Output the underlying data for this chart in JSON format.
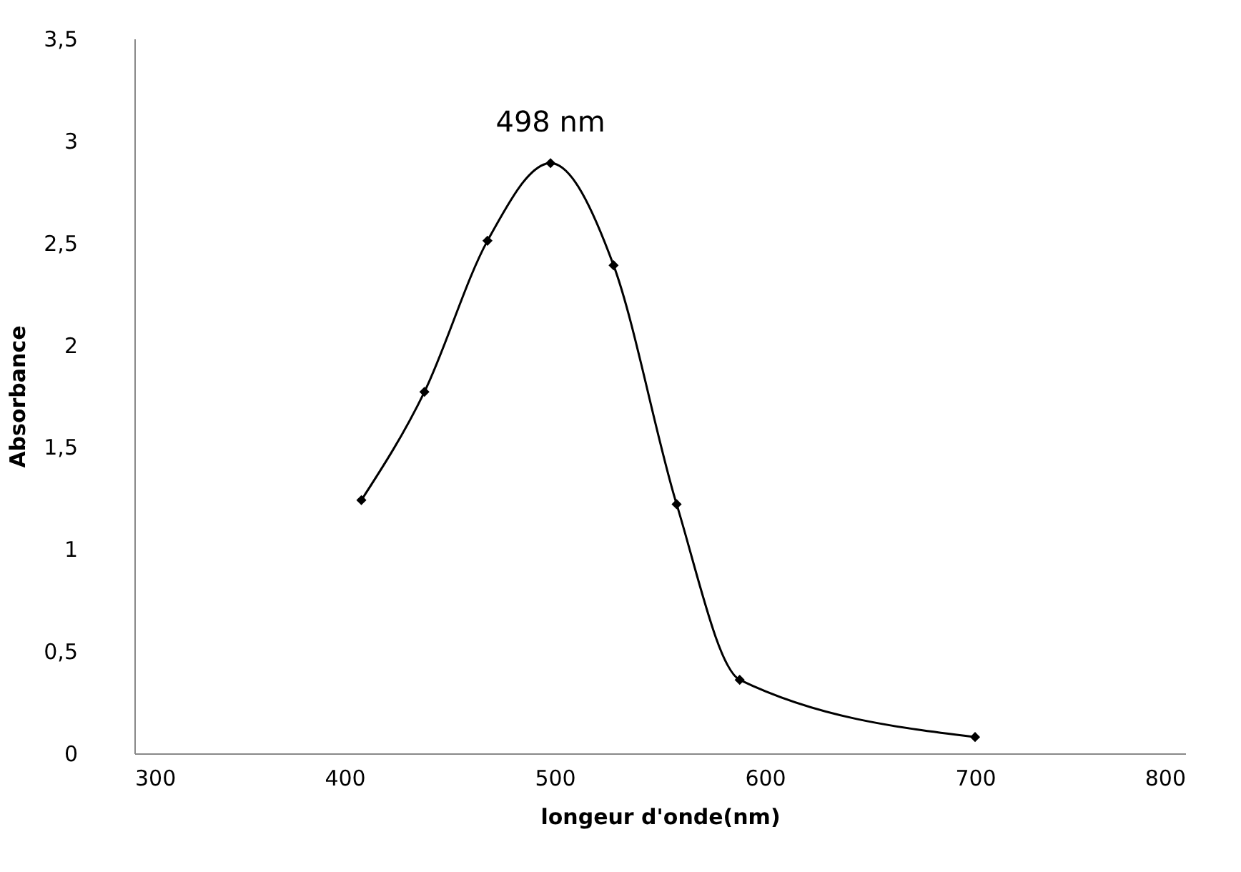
{
  "chart_data": {
    "type": "line",
    "xlabel": "longeur d'onde(nm)",
    "ylabel": "Absorbance",
    "x": [
      408,
      438,
      468,
      498,
      528,
      558,
      588,
      700
    ],
    "series": [
      {
        "color": "#000000",
        "values": [
          1.24,
          1.77,
          2.51,
          2.89,
          2.39,
          1.22,
          0.36,
          0.08
        ]
      }
    ],
    "marker": "diamond",
    "line_style": "solid",
    "grid": false,
    "xlim": [
      300,
      800
    ],
    "xticks": [
      300,
      400,
      500,
      600,
      700,
      800
    ],
    "ylim": [
      0,
      3.5
    ],
    "yticks": [
      0,
      {
        "value": 0.5,
        "label": "0,5"
      },
      1,
      {
        "value": 1.5,
        "label": "1,5"
      },
      2,
      {
        "value": 2.5,
        "label": "2,5"
      },
      3,
      {
        "value": 3.5,
        "label": "3,5"
      }
    ],
    "annotations": [
      {
        "text": "498 nm",
        "x": 498,
        "y": 2.89
      }
    ]
  }
}
